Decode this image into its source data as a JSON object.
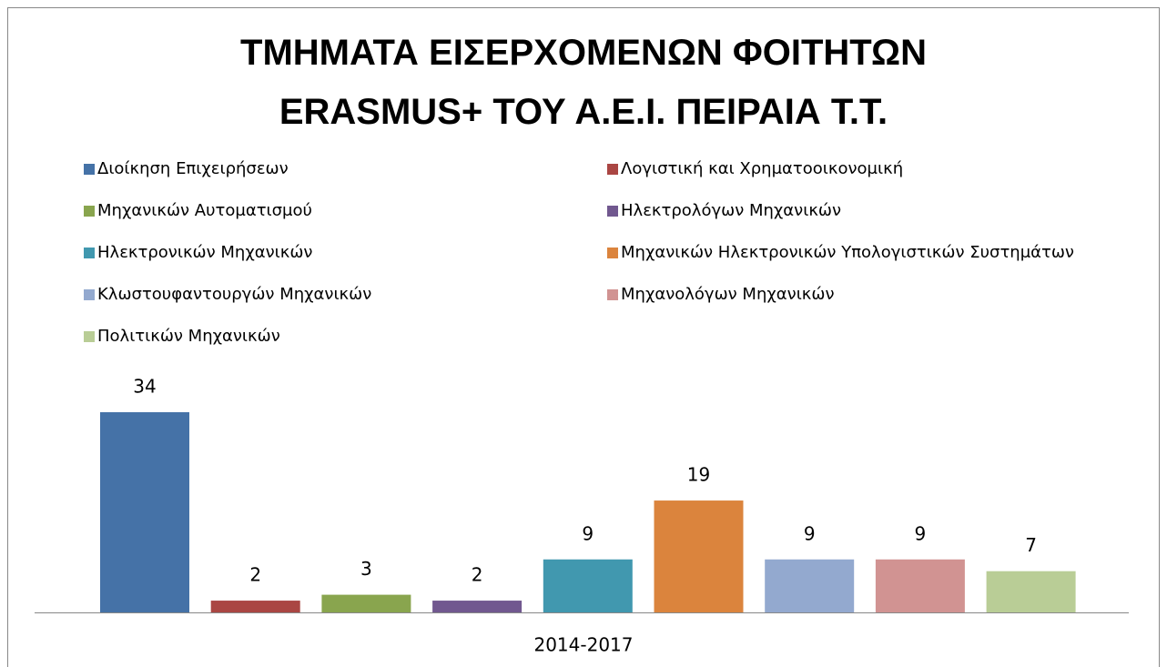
{
  "chart_data": {
    "type": "bar",
    "title": "ΤΜΗΜΑΤΑ ΕΙΣΕΡΧΟΜΕΝΩΝ ΦΟΙΤΗΤΩΝ ERASMUS+ ΤΟΥ Α.Ε.Ι. ΠΕΙΡΑΙΑ Τ.Τ.",
    "categories": [
      "2014-2017"
    ],
    "legend": "top",
    "series": [
      {
        "name": "Διοίκηση Επιχειρήσεων",
        "color": "#4572a7",
        "values": [
          34
        ]
      },
      {
        "name": "Λογιστική και Χρηματοοικονομική",
        "color": "#aa4643",
        "values": [
          2
        ]
      },
      {
        "name": "Μηχανικών Αυτοματισμού",
        "color": "#89a54e",
        "values": [
          3
        ]
      },
      {
        "name": "Ηλεκτρολόγων Μηχανικών",
        "color": "#71588f",
        "values": [
          2
        ]
      },
      {
        "name": "Ηλεκτρονικών Μηχανικών",
        "color": "#4198af",
        "values": [
          9
        ]
      },
      {
        "name": "Μηχανικών Ηλεκτρονικών Υπολογιστικών Συστημάτων",
        "color": "#db843d",
        "values": [
          19
        ]
      },
      {
        "name": "Κλωστουφαντουργών Μηχανικών",
        "color": "#93a9cf",
        "values": [
          9
        ]
      },
      {
        "name": "Μηχανολόγων Μηχανικών",
        "color": "#d19392",
        "values": [
          9
        ]
      },
      {
        "name": "Πολιτικών Μηχανικών",
        "color": "#b9cd96",
        "values": [
          7
        ]
      }
    ]
  }
}
